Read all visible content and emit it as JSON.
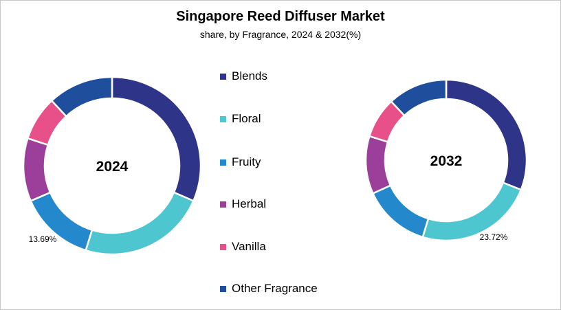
{
  "chart_data": {
    "type": "donut",
    "title": "Singapore Reed Diffuser Market",
    "subtitle": "share, by Fragrance, 2024 & 2032(%)",
    "categories": [
      "Blends",
      "Floral",
      "Fruity",
      "Herbal",
      "Vanilla",
      "Other Fragrance"
    ],
    "colors": [
      "#2e3589",
      "#4ec6d0",
      "#2389cc",
      "#9c3f9b",
      "#e8508a",
      "#1f4e9c"
    ],
    "legend_position": "center",
    "series": [
      {
        "name": "2024",
        "values": [
          31.5,
          23.3,
          13.69,
          11.5,
          8.1,
          11.91
        ],
        "label": "13.69%"
      },
      {
        "name": "2032",
        "values": [
          31.0,
          23.72,
          13.5,
          11.6,
          8.2,
          11.98
        ],
        "label": "23.72%"
      }
    ]
  }
}
